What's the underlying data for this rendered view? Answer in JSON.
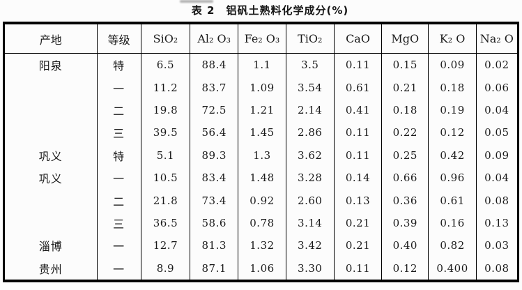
{
  "title": "表 2　铝矾土熟料化学成分(%)",
  "table": {
    "headers": [
      "产地",
      "等级",
      "SiO₂",
      "Al₂ O₃",
      "Fe₂ O₃",
      "TiO₂",
      "CaO",
      "MgO",
      "K₂ O",
      "Na₂ O"
    ],
    "rows": [
      [
        "阳泉",
        "特",
        "6.5",
        "88.4",
        "1.1",
        "3.5",
        "0.11",
        "0.15",
        "0.09",
        "0.02"
      ],
      [
        "",
        "一",
        "11.2",
        "83.7",
        "1.09",
        "3.54",
        "0.61",
        "0.21",
        "0.18",
        "0.06"
      ],
      [
        "",
        "二",
        "19.8",
        "72.5",
        "1.21",
        "2.14",
        "0.41",
        "0.18",
        "0.19",
        "0.04"
      ],
      [
        "",
        "三",
        "39.5",
        "56.4",
        "1.45",
        "2.86",
        "0.11",
        "0.22",
        "0.12",
        "0.05"
      ],
      [
        "巩义",
        "特",
        "5.1",
        "89.3",
        "1.3",
        "3.62",
        "0.11",
        "0.25",
        "0.42",
        "0.09"
      ],
      [
        "巩义",
        "一",
        "10.5",
        "83.4",
        "1.48",
        "3.28",
        "0.14",
        "0.66",
        "0.96",
        "0.04"
      ],
      [
        "",
        "二",
        "21.8",
        "73.4",
        "0.92",
        "2.60",
        "0.13",
        "0.36",
        "0.61",
        "0.08"
      ],
      [
        "",
        "三",
        "36.5",
        "58.6",
        "0.78",
        "3.14",
        "0.21",
        "0.39",
        "0.16",
        "0.13"
      ],
      [
        "淄博",
        "一",
        "12.7",
        "81.3",
        "1.32",
        "3.42",
        "0.21",
        "0.40",
        "0.82",
        "0.03"
      ],
      [
        "贵州",
        "一",
        "8.9",
        "87.1",
        "1.06",
        "3.30",
        "0.11",
        "0.12",
        "0.400",
        "0.08"
      ]
    ]
  }
}
